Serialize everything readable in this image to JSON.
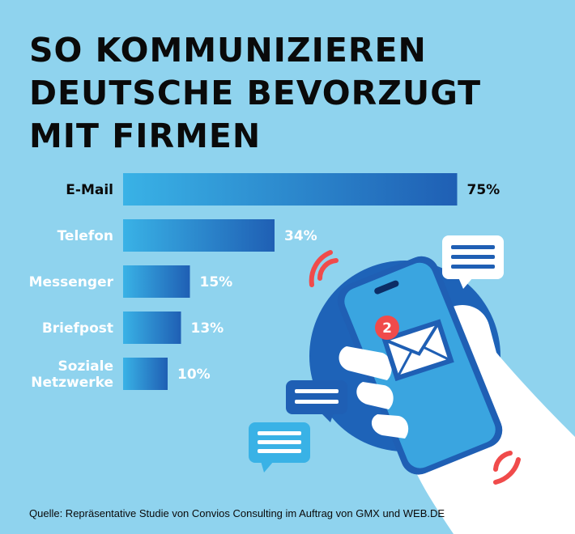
{
  "title_lines": [
    "So kommunizieren",
    "Deutsche bevorzugt",
    "mit Firmen"
  ],
  "colors": {
    "background": "#8fd3ee",
    "bar_light": "#39b2e6",
    "bar_dark": "#1f5fb4",
    "highlight_text": "#0a0a0a",
    "muted_text": "#ffffff"
  },
  "chart_data": {
    "type": "bar",
    "orientation": "horizontal",
    "categories": [
      "E-Mail",
      "Telefon",
      "Messenger",
      "Briefpost",
      "Soziale Netzwerke"
    ],
    "category_lines": [
      [
        "E-Mail"
      ],
      [
        "Telefon"
      ],
      [
        "Messenger"
      ],
      [
        "Briefpost"
      ],
      [
        "Soziale",
        "Netzwerke"
      ]
    ],
    "values": [
      75,
      34,
      15,
      13,
      10
    ],
    "value_labels": [
      "75%",
      "34%",
      "15%",
      "13%",
      "10%"
    ],
    "unit": "%",
    "xlim": [
      0,
      100
    ],
    "highlighted_category": "E-Mail",
    "grid": false,
    "legend": "none"
  },
  "illustration": {
    "icons": [
      "smartphone-icon",
      "envelope-icon",
      "hand-icon",
      "chat-bubble-icon",
      "vibration-waves-icon"
    ],
    "notification_badge": "2"
  },
  "source": "Quelle: Repräsentative Studie von Convios Consulting im Auftrag von GMX und WEB.DE"
}
